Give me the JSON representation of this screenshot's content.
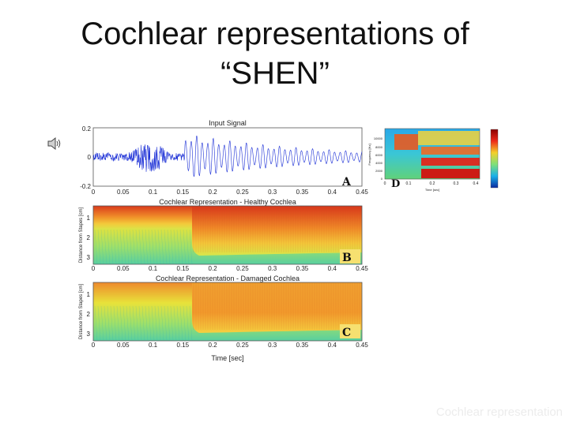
{
  "slide": {
    "title_line1": "Cochlear representations of",
    "title_line2": "“SHEN”",
    "footer": "Cochlear representation"
  },
  "figure": {
    "panel_a": {
      "title": "Input Signal",
      "y_ticks": [
        "0.2",
        "0",
        "-0.2"
      ],
      "x_ticks": [
        "0",
        "0.05",
        "0.1",
        "0.15",
        "0.2",
        "0.25",
        "0.3",
        "0.35",
        "0.4",
        "0.45"
      ],
      "label": "A"
    },
    "panel_b": {
      "title": "Cochlear Representation - Healthy Cochlea",
      "ylabel": "Distance from Stapes [cm]",
      "y_ticks": [
        "1",
        "2",
        "3"
      ],
      "x_ticks": [
        "0",
        "0.05",
        "0.1",
        "0.15",
        "0.2",
        "0.25",
        "0.3",
        "0.35",
        "0.4",
        "0.45"
      ],
      "label": "B"
    },
    "panel_c": {
      "title": "Cochlear Representation - Damaged Cochlea",
      "ylabel": "Distance from Stapes [cm]",
      "y_ticks": [
        "1",
        "2",
        "3"
      ],
      "x_ticks": [
        "0",
        "0.05",
        "0.1",
        "0.15",
        "0.2",
        "0.25",
        "0.3",
        "0.35",
        "0.4",
        "0.45"
      ],
      "xlabel": "Time [sec]",
      "label": "C"
    },
    "panel_d": {
      "label": "D",
      "ylabel": "Frequency [Hz]",
      "y_ticks": [
        "10000",
        "8000",
        "6000",
        "4000",
        "2000",
        "0"
      ],
      "x_ticks": [
        "0",
        "0.1",
        "0.2",
        "0.3",
        "0.4"
      ],
      "xlabel": "Time [sec]"
    },
    "icons": {
      "speaker": "speaker-icon"
    },
    "colors": {
      "waveform": "#1a2ed6",
      "hot": "#d8281c",
      "cool": "#3cc0d8"
    }
  }
}
